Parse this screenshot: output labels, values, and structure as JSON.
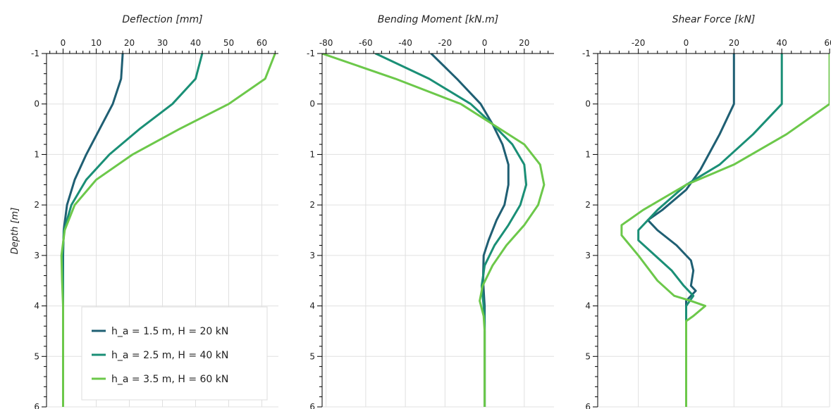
{
  "depth_label": "Depth [m]",
  "legend": [
    {
      "label": "h_a = 1.5 m, H = 20 kN",
      "color": "#1f5f73"
    },
    {
      "label": "h_a = 2.5 m, H = 40 kN",
      "color": "#1a8f76"
    },
    {
      "label": "h_a = 3.5 m, H = 60 kN",
      "color": "#6cc84a"
    }
  ],
  "chart_data": [
    {
      "type": "line",
      "title": "Deflection [mm]",
      "xlabel": "Deflection [mm]",
      "ylabel": "Depth [m]",
      "xlim": [
        -5,
        65
      ],
      "ylim": [
        6,
        -1
      ],
      "x_ticks": [
        0,
        10,
        20,
        30,
        40,
        50,
        60
      ],
      "y_ticks": [
        -1,
        0,
        1,
        2,
        3,
        4,
        5,
        6
      ],
      "grid": true,
      "legend_position": "bottom-right",
      "series": [
        {
          "name": "h_a = 1.5 m, H = 20 kN",
          "color": "#1f5f73",
          "points": [
            [
              18,
              -1
            ],
            [
              17.5,
              -0.5
            ],
            [
              15,
              0
            ],
            [
              11,
              0.5
            ],
            [
              7,
              1
            ],
            [
              3.5,
              1.5
            ],
            [
              1.2,
              2
            ],
            [
              0.2,
              2.5
            ],
            [
              0,
              3
            ],
            [
              0,
              4
            ],
            [
              0,
              5
            ],
            [
              0,
              6
            ]
          ]
        },
        {
          "name": "h_a = 2.5 m, H = 40 kN",
          "color": "#1a8f76",
          "points": [
            [
              42,
              -1
            ],
            [
              40,
              -0.5
            ],
            [
              33,
              0
            ],
            [
              23,
              0.5
            ],
            [
              14,
              1
            ],
            [
              7,
              1.5
            ],
            [
              2.5,
              2
            ],
            [
              0.3,
              2.5
            ],
            [
              -0.2,
              3
            ],
            [
              0,
              3.5
            ],
            [
              0,
              4
            ],
            [
              0,
              5
            ],
            [
              0,
              6
            ]
          ]
        },
        {
          "name": "h_a = 3.5 m, H = 60 kN",
          "color": "#6cc84a",
          "points": [
            [
              64,
              -1
            ],
            [
              61,
              -0.5
            ],
            [
              50,
              0
            ],
            [
              35,
              0.5
            ],
            [
              21,
              1
            ],
            [
              10,
              1.5
            ],
            [
              3.5,
              2
            ],
            [
              0.5,
              2.5
            ],
            [
              -0.5,
              3
            ],
            [
              -0.3,
              3.5
            ],
            [
              0,
              4
            ],
            [
              0,
              5
            ],
            [
              0,
              6
            ]
          ]
        }
      ]
    },
    {
      "type": "line",
      "title": "Bending Moment [kN.m]",
      "xlabel": "Bending Moment [kN.m]",
      "ylabel": "Depth [m]",
      "xlim": [
        -82,
        35
      ],
      "ylim": [
        6,
        -1
      ],
      "x_ticks": [
        -80,
        -60,
        -40,
        -20,
        0,
        20
      ],
      "y_ticks": [
        -1,
        0,
        1,
        2,
        3,
        4,
        5,
        6
      ],
      "grid": true,
      "series": [
        {
          "name": "h_a = 1.5 m, H = 20 kN",
          "color": "#1f5f73",
          "points": [
            [
              -27,
              -1
            ],
            [
              -14,
              -0.5
            ],
            [
              -2,
              0
            ],
            [
              4,
              0.4
            ],
            [
              9,
              0.8
            ],
            [
              12,
              1.2
            ],
            [
              12,
              1.6
            ],
            [
              10,
              2
            ],
            [
              6,
              2.3
            ],
            [
              2,
              2.7
            ],
            [
              -0.5,
              3
            ],
            [
              -0.8,
              3.5
            ],
            [
              0,
              4
            ],
            [
              0,
              5
            ],
            [
              0,
              6
            ]
          ]
        },
        {
          "name": "h_a = 2.5 m, H = 40 kN",
          "color": "#1a8f76",
          "points": [
            [
              -55,
              -1
            ],
            [
              -28,
              -0.5
            ],
            [
              -7,
              0
            ],
            [
              4,
              0.4
            ],
            [
              14,
              0.8
            ],
            [
              20,
              1.2
            ],
            [
              21,
              1.6
            ],
            [
              18,
              2
            ],
            [
              12,
              2.4
            ],
            [
              5,
              2.8
            ],
            [
              0,
              3.2
            ],
            [
              -1.5,
              3.6
            ],
            [
              -0.5,
              4
            ],
            [
              0,
              4.3
            ],
            [
              0,
              5
            ],
            [
              0,
              6
            ]
          ]
        },
        {
          "name": "h_a = 3.5 m, H = 60 kN",
          "color": "#6cc84a",
          "points": [
            [
              -82,
              -1
            ],
            [
              -45,
              -0.5
            ],
            [
              -12,
              0
            ],
            [
              4,
              0.4
            ],
            [
              20,
              0.8
            ],
            [
              28,
              1.2
            ],
            [
              30,
              1.6
            ],
            [
              27,
              2
            ],
            [
              20,
              2.4
            ],
            [
              11,
              2.8
            ],
            [
              4,
              3.2
            ],
            [
              -1,
              3.6
            ],
            [
              -2.5,
              3.9
            ],
            [
              -0.5,
              4.2
            ],
            [
              0,
              4.5
            ],
            [
              0,
              5
            ],
            [
              0,
              6
            ]
          ]
        }
      ]
    },
    {
      "type": "line",
      "title": "Shear Force [kN]",
      "xlabel": "Shear Force [kN]",
      "ylabel": "Depth [m]",
      "xlim": [
        -37,
        60
      ],
      "ylim": [
        6,
        -1
      ],
      "x_ticks": [
        -20,
        0,
        20,
        40,
        60
      ],
      "y_ticks": [
        -1,
        0,
        1,
        2,
        3,
        4,
        5,
        6
      ],
      "grid": true,
      "series": [
        {
          "name": "h_a = 1.5 m, H = 20 kN",
          "color": "#1f5f73",
          "points": [
            [
              20,
              -1
            ],
            [
              20,
              0
            ],
            [
              14,
              0.6
            ],
            [
              6,
              1.3
            ],
            [
              0,
              1.7
            ],
            [
              -10,
              2.1
            ],
            [
              -16,
              2.3
            ],
            [
              -12,
              2.5
            ],
            [
              -4,
              2.8
            ],
            [
              2,
              3.1
            ],
            [
              3,
              3.3
            ],
            [
              2,
              3.6
            ],
            [
              4,
              3.7
            ],
            [
              0,
              3.9
            ],
            [
              0,
              5
            ],
            [
              0,
              6
            ]
          ]
        },
        {
          "name": "h_a = 2.5 m, H = 40 kN",
          "color": "#1a8f76",
          "points": [
            [
              40,
              -1
            ],
            [
              40,
              0
            ],
            [
              28,
              0.6
            ],
            [
              14,
              1.2
            ],
            [
              0,
              1.6
            ],
            [
              -12,
              2.1
            ],
            [
              -20,
              2.5
            ],
            [
              -20,
              2.7
            ],
            [
              -13,
              3.0
            ],
            [
              -6,
              3.3
            ],
            [
              -1,
              3.6
            ],
            [
              3,
              3.8
            ],
            [
              0,
              4
            ],
            [
              0,
              4.3
            ],
            [
              0,
              5
            ],
            [
              0,
              6
            ]
          ]
        },
        {
          "name": "h_a = 3.5 m, H = 60 kN",
          "color": "#6cc84a",
          "points": [
            [
              60,
              -1
            ],
            [
              60,
              0
            ],
            [
              42,
              0.6
            ],
            [
              20,
              1.2
            ],
            [
              0,
              1.6
            ],
            [
              -18,
              2.1
            ],
            [
              -27,
              2.4
            ],
            [
              -27,
              2.6
            ],
            [
              -20,
              3.0
            ],
            [
              -12,
              3.5
            ],
            [
              -5,
              3.8
            ],
            [
              2,
              3.9
            ],
            [
              8,
              4.0
            ],
            [
              3,
              4.2
            ],
            [
              0,
              4.3
            ],
            [
              0,
              4.4
            ],
            [
              0,
              5
            ],
            [
              0,
              6
            ]
          ]
        }
      ]
    }
  ]
}
